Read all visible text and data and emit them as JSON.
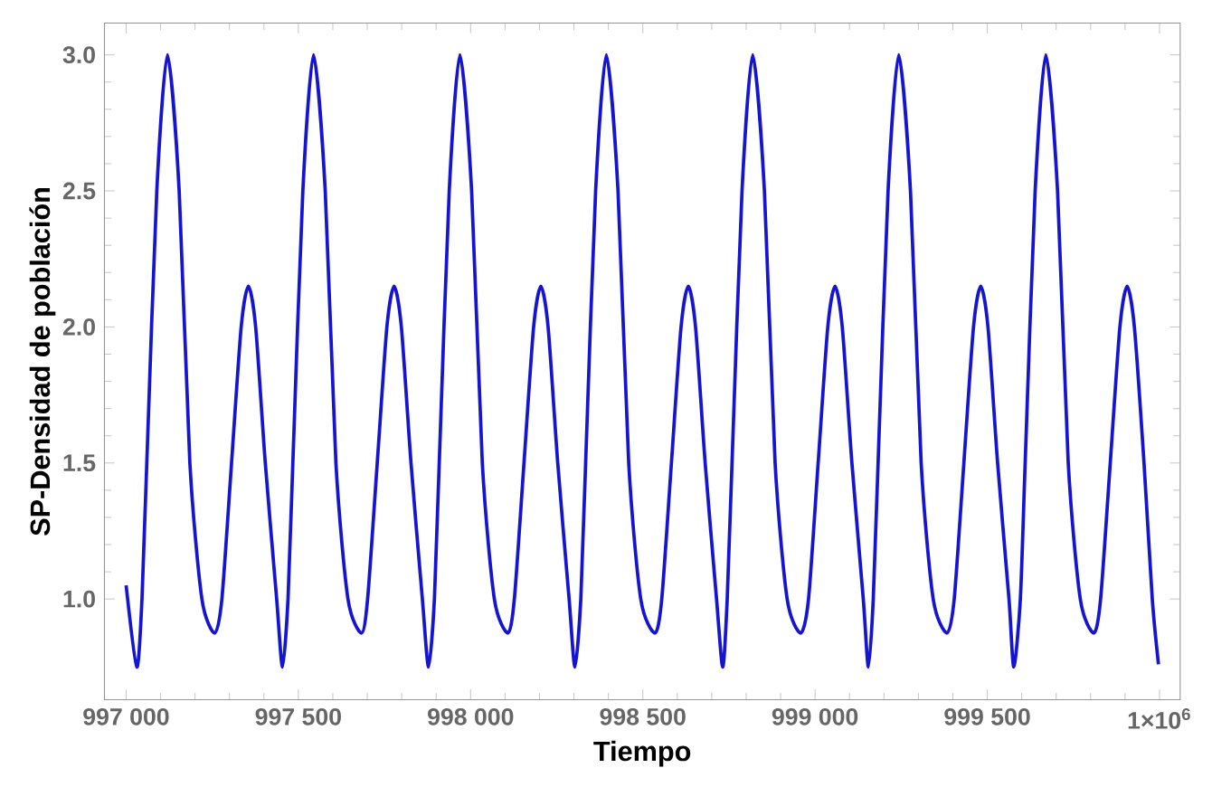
{
  "chart_data": {
    "type": "line",
    "xlabel": "Tiempo",
    "ylabel": "SP-Densidad de población",
    "color": "#1414d2",
    "x": [
      997000,
      997031,
      997046,
      997060,
      997089,
      997120,
      997154,
      997185,
      997220,
      997257,
      997278,
      997306,
      997334,
      997355,
      997376,
      997404,
      997437,
      997454,
      997470,
      997484,
      997513,
      997544,
      997578,
      997609,
      997644,
      997683,
      997701,
      997729,
      997757,
      997778,
      997799,
      997827,
      997860,
      997878,
      997895,
      997909,
      997938,
      997969,
      998003,
      998034,
      998069,
      998108,
      998127,
      998155,
      998183,
      998204,
      998225,
      998253,
      998286,
      998303,
      998320,
      998334,
      998363,
      998394,
      998428,
      998459,
      998494,
      998535,
      998555,
      998583,
      998611,
      998632,
      998653,
      998681,
      998714,
      998732,
      998745,
      998759,
      998788,
      998819,
      998853,
      998884,
      998919,
      998958,
      998981,
      999009,
      999037,
      999058,
      999079,
      999107,
      999140,
      999155,
      999169,
      999183,
      999212,
      999243,
      999277,
      999308,
      999343,
      999383,
      999404,
      999432,
      999460,
      999481,
      999502,
      999530,
      999563,
      999577,
      999596,
      999610,
      999639,
      999670,
      999704,
      999735,
      999770,
      999809,
      999829,
      999857,
      999885,
      999906,
      999927,
      999955,
      999979,
      999997
    ],
    "values": [
      1.05,
      0.75,
      1.0,
      1.5,
      2.5,
      3.0,
      2.5,
      1.5,
      1.0,
      0.875,
      1.0,
      1.5,
      2.0,
      2.15,
      2.0,
      1.5,
      1.0,
      0.75,
      1.0,
      1.5,
      2.5,
      3.0,
      2.5,
      1.5,
      1.0,
      0.875,
      1.0,
      1.5,
      2.0,
      2.15,
      2.0,
      1.5,
      1.0,
      0.75,
      1.0,
      1.5,
      2.5,
      3.0,
      2.5,
      1.5,
      1.0,
      0.875,
      1.0,
      1.5,
      2.0,
      2.15,
      2.0,
      1.5,
      1.0,
      0.75,
      1.0,
      1.5,
      2.5,
      3.0,
      2.5,
      1.5,
      1.0,
      0.875,
      1.0,
      1.5,
      2.0,
      2.15,
      2.0,
      1.5,
      1.0,
      0.75,
      1.0,
      1.5,
      2.5,
      3.0,
      2.5,
      1.5,
      1.0,
      0.875,
      1.0,
      1.5,
      2.0,
      2.15,
      2.0,
      1.5,
      1.0,
      0.75,
      1.0,
      1.5,
      2.5,
      3.0,
      2.5,
      1.5,
      1.0,
      0.875,
      1.0,
      1.5,
      2.0,
      2.15,
      2.0,
      1.5,
      1.0,
      0.75,
      1.0,
      1.5,
      2.5,
      3.0,
      2.5,
      1.5,
      1.0,
      0.875,
      1.0,
      1.5,
      2.0,
      2.15,
      2.0,
      1.5,
      1.0,
      0.76
    ],
    "xlim": [
      996937,
      1000060
    ],
    "ylim": [
      0.63,
      3.117
    ],
    "xticks": [
      {
        "value": 997000,
        "label": "997 000"
      },
      {
        "value": 997500,
        "label": "997 500"
      },
      {
        "value": 998000,
        "label": "998 000"
      },
      {
        "value": 998500,
        "label": "998 500"
      },
      {
        "value": 999000,
        "label": "999 000"
      },
      {
        "value": 999500,
        "label": "999 500"
      },
      {
        "value": 1000000,
        "label": "1×10$^{6}$"
      }
    ],
    "yticks": [
      {
        "value": 1.0,
        "label": "1.0"
      },
      {
        "value": 1.5,
        "label": "1.5"
      },
      {
        "value": 2.0,
        "label": "2.0"
      },
      {
        "value": 2.5,
        "label": "2.5"
      },
      {
        "value": 3.0,
        "label": "3.0"
      }
    ]
  }
}
